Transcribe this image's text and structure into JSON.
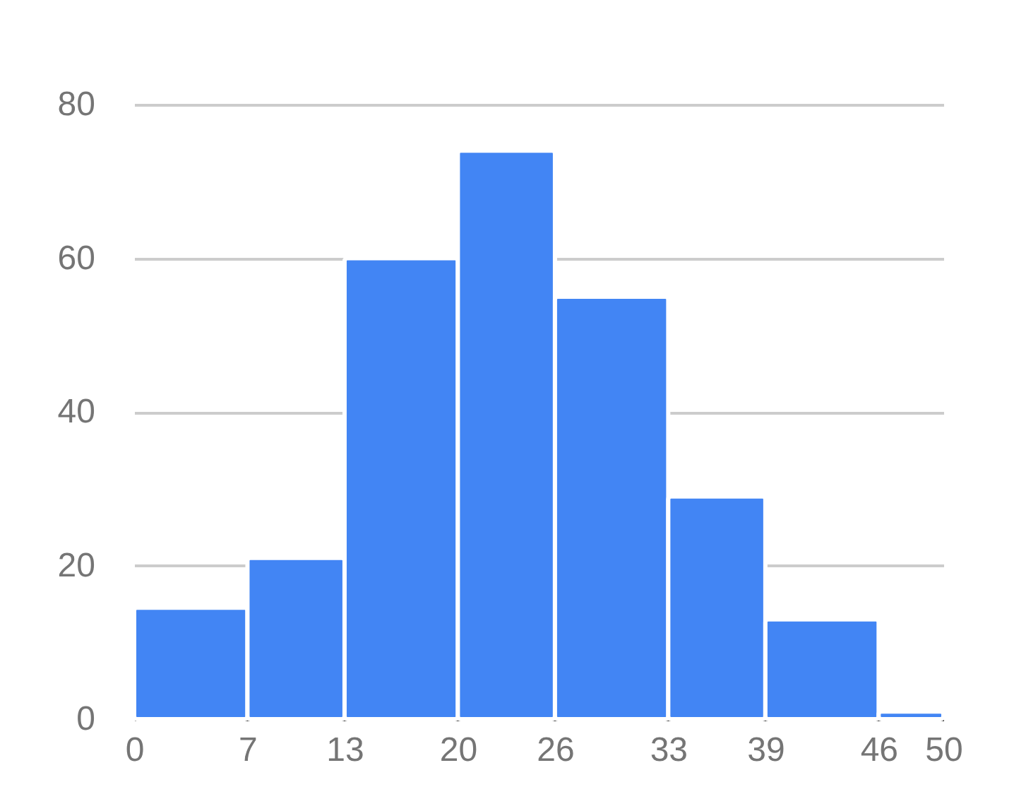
{
  "chart_data": {
    "type": "histogram",
    "bins": [
      0,
      7,
      13,
      20,
      26,
      33,
      39,
      46,
      50
    ],
    "values": [
      14.5,
      21,
      60,
      74,
      55,
      29,
      13,
      1
    ],
    "color": "#4285f4",
    "xlim": [
      0,
      50
    ],
    "xticks": [
      0,
      7,
      13,
      20,
      26,
      33,
      39,
      46,
      50
    ],
    "ylim": [
      0,
      80
    ],
    "yticks": [
      0,
      20,
      40,
      60,
      80
    ],
    "grid": "y"
  }
}
